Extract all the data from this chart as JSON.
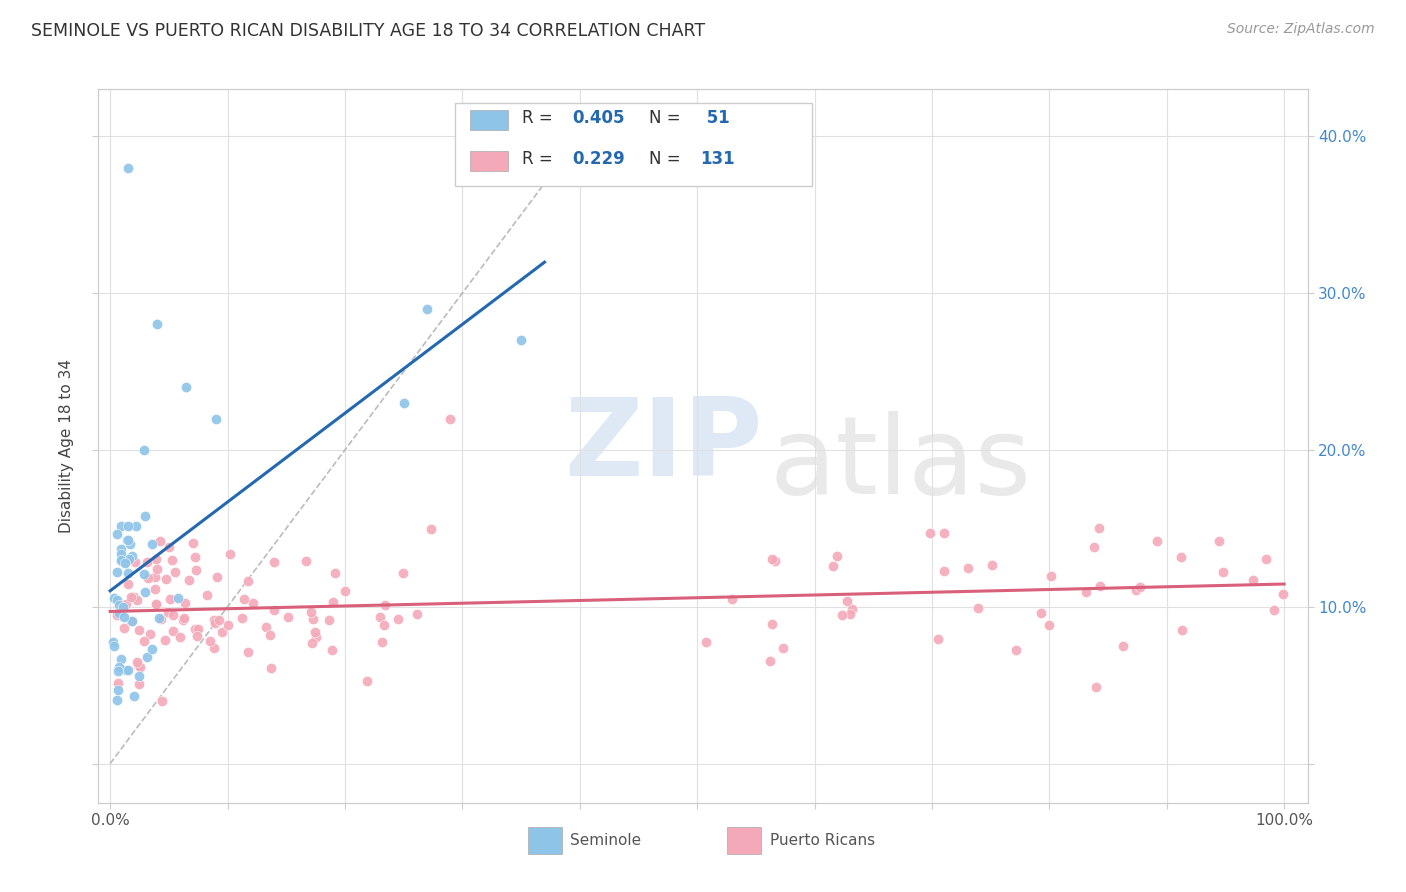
{
  "title": "SEMINOLE VS PUERTO RICAN DISABILITY AGE 18 TO 34 CORRELATION CHART",
  "source": "Source: ZipAtlas.com",
  "ylabel": "Disability Age 18 to 34",
  "xlim": [
    -0.01,
    1.02
  ],
  "ylim": [
    -0.025,
    0.43
  ],
  "xtick_positions": [
    0.0,
    0.1,
    0.2,
    0.3,
    0.4,
    0.5,
    0.6,
    0.7,
    0.8,
    0.9,
    1.0
  ],
  "xticklabels": [
    "0.0%",
    "",
    "",
    "",
    "",
    "",
    "",
    "",
    "",
    "",
    "100.0%"
  ],
  "ytick_positions": [
    0.0,
    0.1,
    0.2,
    0.3,
    0.4
  ],
  "yticklabels_right": [
    "",
    "10.0%",
    "20.0%",
    "30.0%",
    "40.0%"
  ],
  "seminole_R": 0.405,
  "seminole_N": 51,
  "puerto_rican_R": 0.229,
  "puerto_rican_N": 131,
  "seminole_color": "#8ec4e8",
  "puerto_rican_color": "#f4a9b8",
  "seminole_line_color": "#2469b0",
  "puerto_rican_line_color": "#d9607a",
  "diagonal_line_color": "#b0b0b0",
  "background_color": "#ffffff",
  "grid_color": "#e0e0e0",
  "right_tick_color": "#4488cc",
  "seminole_seed": 42,
  "puerto_rican_seed": 99
}
